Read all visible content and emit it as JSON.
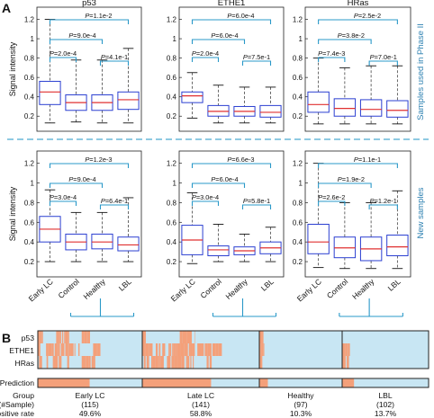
{
  "panel_a_letter": "A",
  "panel_b_letter": "B",
  "colors": {
    "box": "#2b3fd1",
    "median": "#e03030",
    "whisker": "#444444",
    "bracket": "#2a98c8",
    "side_label": "#2a7fb0",
    "divider": "#4aaad0",
    "heat_low": "#c8e6f3",
    "heat_high": "#f4a07a",
    "frame": "#222222"
  },
  "chart_data": [
    {
      "type": "box",
      "title": "p53",
      "row": "Samples used in Phase II",
      "ylabel": "Signal intensity",
      "ylim": [
        0.1,
        1.27
      ],
      "yticks": [
        0.2,
        0.4,
        0.6,
        0.8,
        1.0,
        1.2
      ],
      "yticklabels": [
        "0.2",
        "0.4",
        "0.6",
        "0.8",
        "1",
        "1.2"
      ],
      "categories": [
        "Early LC",
        "Control",
        "Healthy",
        "LBL"
      ],
      "boxes": [
        {
          "min": 0.13,
          "q1": 0.32,
          "median": 0.45,
          "q3": 0.56,
          "max": 1.2
        },
        {
          "min": 0.14,
          "q1": 0.26,
          "median": 0.34,
          "q3": 0.42,
          "max": 0.78
        },
        {
          "min": 0.13,
          "q1": 0.26,
          "median": 0.34,
          "q3": 0.42,
          "max": 0.78
        },
        {
          "min": 0.13,
          "q1": 0.27,
          "median": 0.37,
          "q3": 0.45,
          "max": 0.9
        }
      ],
      "comparisons": [
        {
          "from": 0,
          "to": 3,
          "label": "P=1.1e-2"
        },
        {
          "from": 0,
          "to": 2,
          "label": "P=9.0e-4"
        },
        {
          "from": 0,
          "to": 1,
          "label": "P=2.0e-4"
        },
        {
          "from": 2,
          "to": 3,
          "label": "P=4.1e-1"
        }
      ]
    },
    {
      "type": "box",
      "title": "ETHE1",
      "row": "Samples used in Phase II",
      "ylabel": "",
      "ylim": [
        0.1,
        1.27
      ],
      "yticks": [
        0.2,
        0.4,
        0.6,
        0.8,
        1.0,
        1.2
      ],
      "yticklabels": [
        "0.2",
        "0.4",
        "0.6",
        "0.8",
        "1",
        "1.2"
      ],
      "categories": [
        "Early LC",
        "Control",
        "Healthy",
        "LBL"
      ],
      "boxes": [
        {
          "min": 0.18,
          "q1": 0.34,
          "median": 0.41,
          "q3": 0.45,
          "max": 0.65
        },
        {
          "min": 0.13,
          "q1": 0.2,
          "median": 0.25,
          "q3": 0.31,
          "max": 0.52
        },
        {
          "min": 0.13,
          "q1": 0.2,
          "median": 0.25,
          "q3": 0.3,
          "max": 0.5
        },
        {
          "min": 0.13,
          "q1": 0.19,
          "median": 0.24,
          "q3": 0.31,
          "max": 0.5
        }
      ],
      "comparisons": [
        {
          "from": 0,
          "to": 3,
          "label": "P=6.0e-4"
        },
        {
          "from": 0,
          "to": 2,
          "label": "P=6.0e-4"
        },
        {
          "from": 0,
          "to": 1,
          "label": "P=2.0e-4"
        },
        {
          "from": 2,
          "to": 3,
          "label": "P=7.5e-1"
        }
      ]
    },
    {
      "type": "box",
      "title": "HRas",
      "row": "Samples used in Phase II",
      "ylabel": "",
      "ylim": [
        0.1,
        1.27
      ],
      "yticks": [
        0.2,
        0.4,
        0.6,
        0.8,
        1.0,
        1.2
      ],
      "yticklabels": [
        "0.2",
        "0.4",
        "0.6",
        "0.8",
        "1",
        "1.2"
      ],
      "categories": [
        "Early LC",
        "Control",
        "Healthy",
        "LBL"
      ],
      "boxes": [
        {
          "min": 0.12,
          "q1": 0.24,
          "median": 0.32,
          "q3": 0.45,
          "max": 0.8
        },
        {
          "min": 0.12,
          "q1": 0.2,
          "median": 0.28,
          "q3": 0.38,
          "max": 0.7
        },
        {
          "min": 0.12,
          "q1": 0.2,
          "median": 0.27,
          "q3": 0.37,
          "max": 0.72
        },
        {
          "min": 0.12,
          "q1": 0.19,
          "median": 0.26,
          "q3": 0.36,
          "max": 0.72
        }
      ],
      "comparisons": [
        {
          "from": 0,
          "to": 3,
          "label": "P=2.5e-2"
        },
        {
          "from": 0,
          "to": 2,
          "label": "P=3.8e-2"
        },
        {
          "from": 0,
          "to": 1,
          "label": "P=7.4e-3"
        },
        {
          "from": 2,
          "to": 3,
          "label": "P=7.0e-1"
        }
      ]
    },
    {
      "type": "box",
      "title": "",
      "row": "New samples",
      "ylabel": "Signal intensity",
      "ylim": [
        0.1,
        1.27
      ],
      "yticks": [
        0.2,
        0.4,
        0.6,
        0.8,
        1.0,
        1.2
      ],
      "yticklabels": [
        "0.2",
        "0.4",
        "0.6",
        "0.8",
        "1",
        "1.2"
      ],
      "categories": [
        "Early LC",
        "Control",
        "Healthy",
        "LBL"
      ],
      "boxes": [
        {
          "min": 0.2,
          "q1": 0.4,
          "median": 0.53,
          "q3": 0.66,
          "max": 0.93
        },
        {
          "min": 0.2,
          "q1": 0.32,
          "median": 0.4,
          "q3": 0.48,
          "max": 0.7
        },
        {
          "min": 0.2,
          "q1": 0.33,
          "median": 0.4,
          "q3": 0.48,
          "max": 0.7
        },
        {
          "min": 0.2,
          "q1": 0.31,
          "median": 0.37,
          "q3": 0.45,
          "max": 0.85
        }
      ],
      "comparisons": [
        {
          "from": 0,
          "to": 3,
          "label": "P=1.2e-3"
        },
        {
          "from": 0,
          "to": 2,
          "label": "P=9.0e-4"
        },
        {
          "from": 0,
          "to": 1,
          "label": "P=3.0e-4"
        },
        {
          "from": 2,
          "to": 3,
          "label": "P=6.4e-1"
        }
      ]
    },
    {
      "type": "box",
      "title": "",
      "row": "New samples",
      "ylabel": "",
      "ylim": [
        0.1,
        1.27
      ],
      "yticks": [
        0.2,
        0.4,
        0.6,
        0.8,
        1.0,
        1.2
      ],
      "yticklabels": [
        "0.2",
        "0.4",
        "0.6",
        "0.8",
        "1",
        "1.2"
      ],
      "categories": [
        "Early LC",
        "Control",
        "Healthy",
        "LBL"
      ],
      "boxes": [
        {
          "min": 0.18,
          "q1": 0.27,
          "median": 0.42,
          "q3": 0.57,
          "max": 0.9
        },
        {
          "min": 0.2,
          "q1": 0.26,
          "median": 0.32,
          "q3": 0.36,
          "max": 0.58
        },
        {
          "min": 0.2,
          "q1": 0.27,
          "median": 0.31,
          "q3": 0.35,
          "max": 0.48
        },
        {
          "min": 0.2,
          "q1": 0.28,
          "median": 0.34,
          "q3": 0.4,
          "max": 0.55
        }
      ],
      "comparisons": [
        {
          "from": 0,
          "to": 3,
          "label": "P=6.6e-3"
        },
        {
          "from": 0,
          "to": 2,
          "label": "P=6.0e-4"
        },
        {
          "from": 0,
          "to": 1,
          "label": "P=3.0e-4"
        },
        {
          "from": 2,
          "to": 3,
          "label": "P=5.8e-1"
        }
      ]
    },
    {
      "type": "box",
      "title": "",
      "row": "New samples",
      "ylabel": "",
      "ylim": [
        0.1,
        1.27
      ],
      "yticks": [
        0.2,
        0.4,
        0.6,
        0.8,
        1.0,
        1.2
      ],
      "yticklabels": [
        "0.2",
        "0.4",
        "0.6",
        "0.8",
        "1",
        "1.2"
      ],
      "categories": [
        "Early LC",
        "Control",
        "Healthy",
        "LBL"
      ],
      "boxes": [
        {
          "min": 0.14,
          "q1": 0.28,
          "median": 0.4,
          "q3": 0.58,
          "max": 1.2
        },
        {
          "min": 0.13,
          "q1": 0.24,
          "median": 0.34,
          "q3": 0.45,
          "max": 0.8
        },
        {
          "min": 0.13,
          "q1": 0.21,
          "median": 0.33,
          "q3": 0.45,
          "max": 0.8
        },
        {
          "min": 0.13,
          "q1": 0.26,
          "median": 0.35,
          "q3": 0.47,
          "max": 0.92
        }
      ],
      "comparisons": [
        {
          "from": 0,
          "to": 3,
          "label": "P=1.1e-1"
        },
        {
          "from": 0,
          "to": 2,
          "label": "P=1.9e-2"
        },
        {
          "from": 0,
          "to": 1,
          "label": "P=2.6e-2"
        },
        {
          "from": 2,
          "to": 3,
          "label": "P=1.2e-1"
        }
      ]
    },
    {
      "type": "heatmap",
      "rows": [
        "p53",
        "ETHE1",
        "HRas"
      ],
      "prediction_label": "Prediction",
      "group_header": [
        "Group",
        "(#Sample)"
      ],
      "rate_header": "Positive rate",
      "groups": [
        {
          "name": "Early LC",
          "n": 115,
          "n_label": "(115)",
          "positive_rate": "49.6%",
          "pred_positive_fraction": 0.496,
          "rows": [
            [
              0.0,
              0.05,
              0.15,
              0.3,
              0.42,
              0.5
            ],
            [
              0.0,
              0.4,
              0.5,
              0.62
            ],
            [
              0.0,
              0.3,
              0.42,
              0.55
            ]
          ]
        },
        {
          "name": "Late LC",
          "n": 141,
          "n_label": "(141)",
          "positive_rate": "58.8%",
          "pred_positive_fraction": 0.588,
          "rows": [
            [
              0.0,
              0.06,
              0.32,
              0.45
            ],
            [
              0.0,
              0.68
            ],
            [
              0.0,
              0.44,
              0.55,
              0.6
            ]
          ]
        },
        {
          "name": "Healthy",
          "n": 97,
          "n_label": "(97)",
          "positive_rate": "10.3%",
          "pred_positive_fraction": 0.103,
          "rows": [
            [
              0.0,
              0.05
            ],
            [
              0.0,
              0.06
            ],
            [
              0.0,
              0.04
            ]
          ]
        },
        {
          "name": "LBL",
          "n": 102,
          "n_label": "(102)",
          "positive_rate": "13.7%",
          "pred_positive_fraction": 0.137,
          "rows": [
            [
              0.0,
              0.05
            ],
            [
              0.0,
              0.09
            ],
            [
              0.0,
              0.08
            ]
          ]
        }
      ]
    }
  ]
}
